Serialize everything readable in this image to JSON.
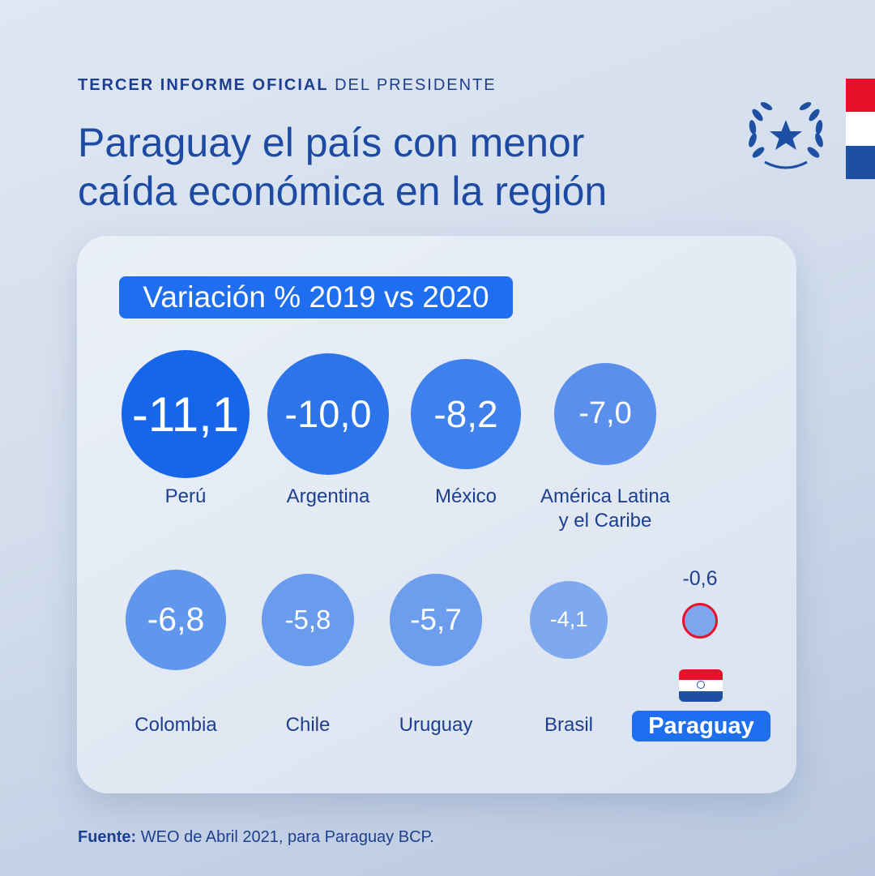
{
  "header": {
    "eyebrow_strong": "TERCER INFORME OFICIAL",
    "eyebrow_rest": "DEL PRESIDENTE",
    "title_line1": "Paraguay el país con menor",
    "title_line2": "caída económica en la región"
  },
  "colors": {
    "flag_red": "#e8102b",
    "flag_white": "#ffffff",
    "flag_blue": "#1d4fa3",
    "accent_blue": "#1f6ef0",
    "text_navy": "#1d3f8f"
  },
  "chart_data": {
    "type": "bubble",
    "subtitle": "Variación % 2019 vs 2020",
    "points": [
      {
        "label": "Perú",
        "value": "-11,1",
        "v": -11.1
      },
      {
        "label": "Argentina",
        "value": "-10,0",
        "v": -10.0
      },
      {
        "label": "México",
        "value": "-8,2",
        "v": -8.2
      },
      {
        "label": "América Latina y el Caribe",
        "value": "-7,0",
        "v": -7.0
      },
      {
        "label": "Colombia",
        "value": "-6,8",
        "v": -6.8
      },
      {
        "label": "Chile",
        "value": "-5,8",
        "v": -5.8
      },
      {
        "label": "Uruguay",
        "value": "-5,7",
        "v": -5.7
      },
      {
        "label": "Brasil",
        "value": "-4,1",
        "v": -4.1
      },
      {
        "label": "Paraguay",
        "value": "-0,6",
        "v": -0.6,
        "highlight": true
      }
    ]
  },
  "labels": {
    "ml_line1": "América Latina",
    "ml_line2": "y el Caribe"
  },
  "source": {
    "label": "Fuente:",
    "text": "WEO de Abril 2021, para Paraguay BCP."
  }
}
